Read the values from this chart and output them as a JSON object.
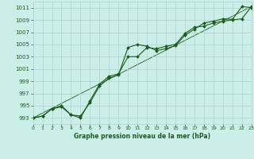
{
  "title": "Graphe pression niveau de la mer (hPa)",
  "bg_color": "#cceee8",
  "grid_color": "#aad4ce",
  "line_color": "#1a5c1a",
  "marker_color": "#1a5c1a",
  "xlim": [
    0,
    23
  ],
  "ylim": [
    992,
    1012
  ],
  "yticks": [
    993,
    995,
    997,
    999,
    1001,
    1003,
    1005,
    1007,
    1009,
    1011
  ],
  "xticks": [
    0,
    1,
    2,
    3,
    4,
    5,
    6,
    7,
    8,
    9,
    10,
    11,
    12,
    13,
    14,
    15,
    16,
    17,
    18,
    19,
    20,
    21,
    22,
    23
  ],
  "series1_x": [
    0,
    1,
    2,
    3,
    4,
    5,
    6,
    7,
    8,
    9,
    10,
    11,
    12,
    13,
    14,
    15,
    16,
    17,
    18,
    19,
    20,
    21,
    22,
    23
  ],
  "series1_y": [
    993.0,
    993.3,
    994.5,
    994.8,
    993.5,
    993.3,
    995.5,
    998.2,
    999.5,
    1000.0,
    1004.5,
    1005.0,
    1004.7,
    1004.0,
    1004.3,
    1004.8,
    1006.5,
    1007.5,
    1008.5,
    1008.8,
    1009.2,
    1009.1,
    1011.2,
    1011.0
  ],
  "series2_x": [
    0,
    1,
    2,
    3,
    4,
    5,
    6,
    7,
    8,
    9,
    10,
    11,
    12,
    13,
    14,
    15,
    16,
    17,
    18,
    19,
    20,
    21,
    22,
    23
  ],
  "series2_y": [
    993.0,
    993.3,
    994.5,
    995.0,
    993.5,
    993.0,
    995.8,
    998.5,
    999.8,
    1000.2,
    1003.0,
    1003.0,
    1004.5,
    1004.3,
    1004.7,
    1005.0,
    1006.8,
    1007.8,
    1008.0,
    1008.5,
    1008.8,
    1009.0,
    1009.2,
    1011.2
  ],
  "series3_x": [
    0,
    23
  ],
  "series3_y": [
    993.0,
    1011.2
  ]
}
